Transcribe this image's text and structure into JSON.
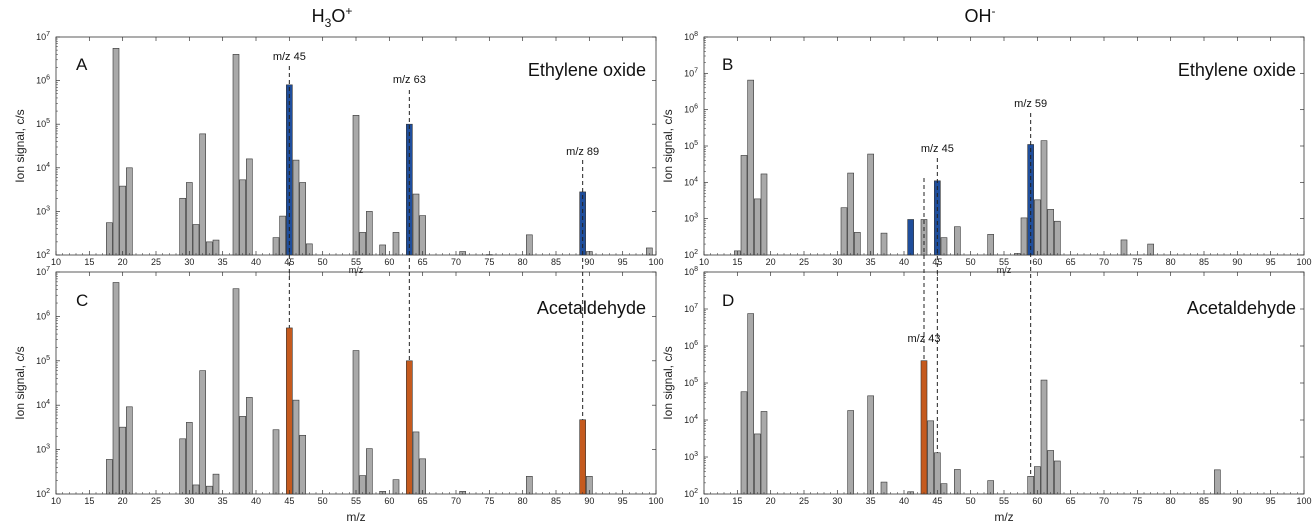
{
  "column_titles": [
    {
      "main": "H",
      "sub": "3",
      "tail": "O",
      "sup": "+"
    },
    {
      "main": "OH",
      "sub": "",
      "tail": "",
      "sup": "-"
    }
  ],
  "colors": {
    "gray": "#a9a9a9",
    "blue": "#1f4e9c",
    "orange": "#c55a1e"
  },
  "chart_data": [
    {
      "type": "bar",
      "letter": "A",
      "compound": "Ethylene oxide",
      "xlabel": "m/z",
      "ylabel": "Ion signal, c/s",
      "xlim": [
        10,
        100
      ],
      "ylim": [
        100,
        10000000
      ],
      "yscale": "log",
      "x_ticks": [
        10,
        15,
        20,
        25,
        30,
        35,
        40,
        45,
        50,
        55,
        60,
        65,
        70,
        75,
        80,
        85,
        90,
        95,
        100
      ],
      "y_ticks": [
        {
          "value": 100,
          "base": "10",
          "exp": "2"
        },
        {
          "value": 1000,
          "base": "10",
          "exp": "3"
        },
        {
          "value": 10000,
          "base": "10",
          "exp": "4"
        },
        {
          "value": 100000,
          "base": "10",
          "exp": "5"
        },
        {
          "value": 1000000,
          "base": "10",
          "exp": "6"
        },
        {
          "value": 10000000,
          "base": "10",
          "exp": "7"
        }
      ],
      "annotations": [
        {
          "x": 45,
          "label": "m/z 45"
        },
        {
          "x": 63,
          "label": "m/z 63"
        },
        {
          "x": 89,
          "label": "m/z 89"
        }
      ],
      "bars": [
        {
          "x": 18,
          "y": 550,
          "color": "gray"
        },
        {
          "x": 19,
          "y": 5500000,
          "color": "gray"
        },
        {
          "x": 20,
          "y": 3800,
          "color": "gray"
        },
        {
          "x": 21,
          "y": 10000,
          "color": "gray"
        },
        {
          "x": 29,
          "y": 2000,
          "color": "gray"
        },
        {
          "x": 30,
          "y": 4600,
          "color": "gray"
        },
        {
          "x": 31,
          "y": 500,
          "color": "gray"
        },
        {
          "x": 32,
          "y": 60000,
          "color": "gray"
        },
        {
          "x": 33,
          "y": 200,
          "color": "gray"
        },
        {
          "x": 34,
          "y": 220,
          "color": "gray"
        },
        {
          "x": 37,
          "y": 4000000,
          "color": "gray"
        },
        {
          "x": 38,
          "y": 5300,
          "color": "gray"
        },
        {
          "x": 39,
          "y": 16000,
          "color": "gray"
        },
        {
          "x": 43,
          "y": 250,
          "color": "gray"
        },
        {
          "x": 44,
          "y": 780,
          "color": "gray"
        },
        {
          "x": 45,
          "y": 800000,
          "color": "blue"
        },
        {
          "x": 46,
          "y": 15000,
          "color": "gray"
        },
        {
          "x": 47,
          "y": 4600,
          "color": "gray"
        },
        {
          "x": 48,
          "y": 180,
          "color": "gray"
        },
        {
          "x": 55,
          "y": 160000,
          "color": "gray"
        },
        {
          "x": 56,
          "y": 330,
          "color": "gray"
        },
        {
          "x": 57,
          "y": 1000,
          "color": "gray"
        },
        {
          "x": 59,
          "y": 170,
          "color": "gray"
        },
        {
          "x": 61,
          "y": 330,
          "color": "gray"
        },
        {
          "x": 63,
          "y": 100000,
          "color": "blue"
        },
        {
          "x": 64,
          "y": 2500,
          "color": "gray"
        },
        {
          "x": 65,
          "y": 800,
          "color": "gray"
        },
        {
          "x": 71,
          "y": 120,
          "color": "gray"
        },
        {
          "x": 75,
          "y": 102,
          "color": "gray"
        },
        {
          "x": 81,
          "y": 290,
          "color": "gray"
        },
        {
          "x": 89,
          "y": 2800,
          "color": "blue"
        },
        {
          "x": 90,
          "y": 120,
          "color": "gray"
        },
        {
          "x": 99,
          "y": 145,
          "color": "gray"
        }
      ]
    },
    {
      "type": "bar",
      "letter": "B",
      "compound": "Ethylene oxide",
      "xlabel": "m/z",
      "ylabel": "Ion signal, c/s",
      "xlim": [
        10,
        100
      ],
      "ylim": [
        100,
        100000000
      ],
      "yscale": "log",
      "x_ticks": [
        10,
        15,
        20,
        25,
        30,
        35,
        40,
        45,
        50,
        55,
        60,
        65,
        70,
        75,
        80,
        85,
        90,
        95,
        100
      ],
      "y_ticks": [
        {
          "value": 100,
          "base": "10",
          "exp": "2"
        },
        {
          "value": 1000,
          "base": "10",
          "exp": "3"
        },
        {
          "value": 10000,
          "base": "10",
          "exp": "4"
        },
        {
          "value": 100000,
          "base": "10",
          "exp": "5"
        },
        {
          "value": 1000000,
          "base": "10",
          "exp": "6"
        },
        {
          "value": 10000000,
          "base": "10",
          "exp": "7"
        },
        {
          "value": 100000000,
          "base": "10",
          "exp": "8"
        }
      ],
      "annotations": [
        {
          "x": 45,
          "label": "m/z 45"
        },
        {
          "x": 59,
          "label": "m/z 59"
        }
      ],
      "bars": [
        {
          "x": 15,
          "y": 130,
          "color": "gray"
        },
        {
          "x": 16,
          "y": 55000,
          "color": "gray"
        },
        {
          "x": 17,
          "y": 6500000,
          "color": "gray"
        },
        {
          "x": 18,
          "y": 3500,
          "color": "gray"
        },
        {
          "x": 19,
          "y": 17000,
          "color": "gray"
        },
        {
          "x": 31,
          "y": 2000,
          "color": "gray"
        },
        {
          "x": 32,
          "y": 18000,
          "color": "gray"
        },
        {
          "x": 33,
          "y": 420,
          "color": "gray"
        },
        {
          "x": 35,
          "y": 60000,
          "color": "gray"
        },
        {
          "x": 37,
          "y": 400,
          "color": "gray"
        },
        {
          "x": 41,
          "y": 950,
          "color": "blue"
        },
        {
          "x": 43,
          "y": 950,
          "color": "gray"
        },
        {
          "x": 45,
          "y": 11000,
          "color": "blue"
        },
        {
          "x": 46,
          "y": 300,
          "color": "gray"
        },
        {
          "x": 48,
          "y": 600,
          "color": "gray"
        },
        {
          "x": 53,
          "y": 370,
          "color": "gray"
        },
        {
          "x": 57,
          "y": 110,
          "color": "gray"
        },
        {
          "x": 58,
          "y": 1050,
          "color": "gray"
        },
        {
          "x": 59,
          "y": 110000,
          "color": "blue"
        },
        {
          "x": 60,
          "y": 3300,
          "color": "gray"
        },
        {
          "x": 61,
          "y": 140000,
          "color": "gray"
        },
        {
          "x": 62,
          "y": 1800,
          "color": "gray"
        },
        {
          "x": 63,
          "y": 850,
          "color": "gray"
        },
        {
          "x": 73,
          "y": 260,
          "color": "gray"
        },
        {
          "x": 77,
          "y": 200,
          "color": "gray"
        }
      ]
    },
    {
      "type": "bar",
      "letter": "C",
      "compound": "Acetaldehyde",
      "xlabel": "m/z",
      "ylabel": "Ion signal, c/s",
      "xlim": [
        10,
        100
      ],
      "ylim": [
        100,
        10000000
      ],
      "yscale": "log",
      "x_ticks": [
        10,
        15,
        20,
        25,
        30,
        35,
        40,
        45,
        50,
        55,
        60,
        65,
        70,
        75,
        80,
        85,
        90,
        95,
        100
      ],
      "y_ticks": [
        {
          "value": 100,
          "base": "10",
          "exp": "2"
        },
        {
          "value": 1000,
          "base": "10",
          "exp": "3"
        },
        {
          "value": 10000,
          "base": "10",
          "exp": "4"
        },
        {
          "value": 100000,
          "base": "10",
          "exp": "5"
        },
        {
          "value": 1000000,
          "base": "10",
          "exp": "6"
        },
        {
          "value": 10000000,
          "base": "10",
          "exp": "7"
        }
      ],
      "annotations": [],
      "bars": [
        {
          "x": 18,
          "y": 600,
          "color": "gray"
        },
        {
          "x": 19,
          "y": 5800000,
          "color": "gray"
        },
        {
          "x": 20,
          "y": 3200,
          "color": "gray"
        },
        {
          "x": 21,
          "y": 9200,
          "color": "gray"
        },
        {
          "x": 29,
          "y": 1750,
          "color": "gray"
        },
        {
          "x": 30,
          "y": 4100,
          "color": "gray"
        },
        {
          "x": 31,
          "y": 160,
          "color": "gray"
        },
        {
          "x": 32,
          "y": 60000,
          "color": "gray"
        },
        {
          "x": 33,
          "y": 150,
          "color": "gray"
        },
        {
          "x": 34,
          "y": 280,
          "color": "gray"
        },
        {
          "x": 37,
          "y": 4200000,
          "color": "gray"
        },
        {
          "x": 38,
          "y": 5600,
          "color": "gray"
        },
        {
          "x": 39,
          "y": 15000,
          "color": "gray"
        },
        {
          "x": 43,
          "y": 2800,
          "color": "gray"
        },
        {
          "x": 45,
          "y": 550000,
          "color": "orange"
        },
        {
          "x": 46,
          "y": 13000,
          "color": "gray"
        },
        {
          "x": 47,
          "y": 2100,
          "color": "gray"
        },
        {
          "x": 55,
          "y": 170000,
          "color": "gray"
        },
        {
          "x": 56,
          "y": 260,
          "color": "gray"
        },
        {
          "x": 57,
          "y": 1050,
          "color": "gray"
        },
        {
          "x": 59,
          "y": 115,
          "color": "gray"
        },
        {
          "x": 61,
          "y": 210,
          "color": "gray"
        },
        {
          "x": 63,
          "y": 100000,
          "color": "orange"
        },
        {
          "x": 64,
          "y": 2500,
          "color": "gray"
        },
        {
          "x": 65,
          "y": 620,
          "color": "gray"
        },
        {
          "x": 71,
          "y": 115,
          "color": "gray"
        },
        {
          "x": 81,
          "y": 250,
          "color": "gray"
        },
        {
          "x": 89,
          "y": 4700,
          "color": "orange"
        },
        {
          "x": 90,
          "y": 250,
          "color": "gray"
        }
      ]
    },
    {
      "type": "bar",
      "letter": "D",
      "compound": "Acetaldehyde",
      "xlabel": "m/z",
      "ylabel": "Ion signal, c/s",
      "xlim": [
        10,
        100
      ],
      "ylim": [
        100,
        100000000
      ],
      "yscale": "log",
      "x_ticks": [
        10,
        15,
        20,
        25,
        30,
        35,
        40,
        45,
        50,
        55,
        60,
        65,
        70,
        75,
        80,
        85,
        90,
        95,
        100
      ],
      "y_ticks": [
        {
          "value": 100,
          "base": "10",
          "exp": "2"
        },
        {
          "value": 1000,
          "base": "10",
          "exp": "3"
        },
        {
          "value": 10000,
          "base": "10",
          "exp": "4"
        },
        {
          "value": 100000,
          "base": "10",
          "exp": "5"
        },
        {
          "value": 1000000,
          "base": "10",
          "exp": "6"
        },
        {
          "value": 10000000,
          "base": "10",
          "exp": "7"
        },
        {
          "value": 100000000,
          "base": "10",
          "exp": "8"
        }
      ],
      "annotations": [
        {
          "x": 43,
          "label": "m/z 43"
        }
      ],
      "bars": [
        {
          "x": 16,
          "y": 58000,
          "color": "gray"
        },
        {
          "x": 17,
          "y": 7500000,
          "color": "gray"
        },
        {
          "x": 18,
          "y": 4200,
          "color": "gray"
        },
        {
          "x": 19,
          "y": 17000,
          "color": "gray"
        },
        {
          "x": 32,
          "y": 18000,
          "color": "gray"
        },
        {
          "x": 35,
          "y": 45000,
          "color": "gray"
        },
        {
          "x": 37,
          "y": 210,
          "color": "gray"
        },
        {
          "x": 41,
          "y": 115,
          "color": "gray"
        },
        {
          "x": 43,
          "y": 400000,
          "color": "orange"
        },
        {
          "x": 44,
          "y": 9500,
          "color": "gray"
        },
        {
          "x": 45,
          "y": 1300,
          "color": "gray"
        },
        {
          "x": 46,
          "y": 190,
          "color": "gray"
        },
        {
          "x": 48,
          "y": 460,
          "color": "gray"
        },
        {
          "x": 53,
          "y": 230,
          "color": "gray"
        },
        {
          "x": 59,
          "y": 300,
          "color": "gray"
        },
        {
          "x": 60,
          "y": 550,
          "color": "gray"
        },
        {
          "x": 61,
          "y": 120000,
          "color": "gray"
        },
        {
          "x": 62,
          "y": 1500,
          "color": "gray"
        },
        {
          "x": 63,
          "y": 780,
          "color": "gray"
        },
        {
          "x": 87,
          "y": 450,
          "color": "gray"
        }
      ]
    }
  ]
}
